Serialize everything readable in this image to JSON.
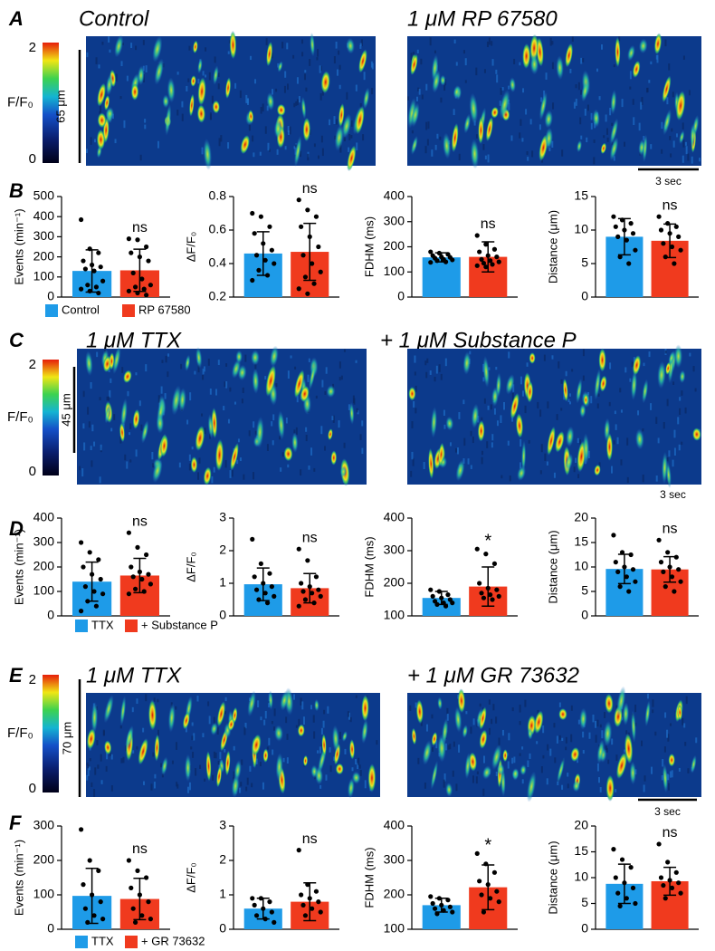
{
  "figure": {
    "panel_labels": [
      "A",
      "B",
      "C",
      "D",
      "E",
      "F"
    ],
    "kymographs": [
      {
        "titles": [
          "Control",
          "1 μM RP 67580"
        ],
        "colorbar_label": "F/F₀",
        "colorbar_lim": [
          0,
          2
        ],
        "colorbar_ticks": [
          0,
          2
        ],
        "space_scale": "65 μm",
        "time_scale": "3 sec"
      },
      {
        "titles": [
          "1 μM TTX",
          "+ 1 μM Substance P"
        ],
        "colorbar_label": "F/F₀",
        "colorbar_lim": [
          0,
          2
        ],
        "colorbar_ticks": [
          0,
          2
        ],
        "space_scale": "45 μm",
        "time_scale": "3 sec"
      },
      {
        "titles": [
          "1 μM TTX",
          "+ 1 μM GR 73632"
        ],
        "colorbar_label": "F/F₀",
        "colorbar_lim": [
          0,
          2
        ],
        "colorbar_ticks": [
          0,
          2
        ],
        "space_scale": "70 μm",
        "time_scale": "3 sec"
      }
    ],
    "legends": [
      [
        {
          "name": "Control",
          "color": "#1e9be8"
        },
        {
          "name": "RP 67580",
          "color": "#f03a1e"
        }
      ],
      [
        {
          "name": "TTX",
          "color": "#1e9be8"
        },
        {
          "name": "+ Substance P",
          "color": "#f03a1e"
        }
      ],
      [
        {
          "name": "TTX",
          "color": "#1e9be8"
        },
        {
          "name": "+ GR 73632",
          "color": "#f03a1e"
        }
      ]
    ]
  },
  "chart_data": [
    {
      "type": "bar",
      "ylabel": "Events (min⁻¹)",
      "ylim": [
        0,
        500
      ],
      "yticks": [
        0,
        100,
        200,
        300,
        400,
        500
      ],
      "series": [
        {
          "color": "#1e9be8",
          "values": [
            130
          ],
          "errors": [
            105
          ],
          "points": [
            385,
            240,
            220,
            180,
            160,
            150,
            140,
            130,
            80,
            60,
            50,
            40,
            30,
            20
          ]
        },
        {
          "color": "#f03a1e",
          "values": [
            133
          ],
          "errors": [
            105
          ],
          "points": [
            290,
            285,
            250,
            220,
            200,
            180,
            120,
            90,
            60,
            50,
            40,
            30,
            20,
            10
          ],
          "annotation": "ns"
        }
      ]
    },
    {
      "type": "bar",
      "ylabel": "ΔF/F₀",
      "ylim": [
        0.2,
        0.8
      ],
      "yticks": [
        0.2,
        0.4,
        0.6,
        0.8
      ],
      "series": [
        {
          "color": "#1e9be8",
          "values": [
            0.46
          ],
          "errors": [
            0.13
          ],
          "points": [
            0.7,
            0.68,
            0.62,
            0.58,
            0.52,
            0.48,
            0.45,
            0.42,
            0.4,
            0.36,
            0.33,
            0.3
          ]
        },
        {
          "color": "#f03a1e",
          "values": [
            0.47
          ],
          "errors": [
            0.17
          ],
          "points": [
            0.78,
            0.72,
            0.68,
            0.62,
            0.56,
            0.5,
            0.45,
            0.4,
            0.35,
            0.32,
            0.28,
            0.25,
            0.22
          ],
          "annotation": "ns"
        }
      ]
    },
    {
      "type": "bar",
      "ylabel": "FDHM (ms)",
      "ylim": [
        0,
        400
      ],
      "yticks": [
        0,
        100,
        200,
        300,
        400
      ],
      "series": [
        {
          "color": "#1e9be8",
          "values": [
            158
          ],
          "errors": [
            18
          ],
          "points": [
            180,
            175,
            170,
            165,
            160,
            158,
            155,
            150,
            148,
            145,
            140,
            138
          ]
        },
        {
          "color": "#f03a1e",
          "values": [
            160
          ],
          "errors": [
            60
          ],
          "points": [
            245,
            210,
            190,
            180,
            165,
            160,
            150,
            145,
            140,
            135,
            130,
            125,
            120
          ],
          "annotation": "ns"
        }
      ]
    },
    {
      "type": "bar",
      "ylabel": "Distance (μm)",
      "ylim": [
        0,
        15
      ],
      "yticks": [
        0,
        5,
        10,
        15
      ],
      "series": [
        {
          "color": "#1e9be8",
          "values": [
            9
          ],
          "errors": [
            2.7
          ],
          "points": [
            12,
            11.5,
            11,
            10.5,
            10,
            9.5,
            9,
            8.5,
            7,
            6,
            5
          ]
        },
        {
          "color": "#f03a1e",
          "values": [
            8.4
          ],
          "errors": [
            2.5
          ],
          "points": [
            12,
            11,
            10.5,
            10,
            9.5,
            9,
            8,
            7.5,
            7,
            6,
            5
          ],
          "annotation": "ns"
        }
      ]
    },
    {
      "type": "bar",
      "ylabel": "Events (min⁻¹)",
      "ylim": [
        0,
        400
      ],
      "yticks": [
        0,
        100,
        200,
        300,
        400
      ],
      "series": [
        {
          "color": "#1e9be8",
          "values": [
            140
          ],
          "errors": [
            80
          ],
          "points": [
            300,
            260,
            230,
            200,
            170,
            150,
            120,
            100,
            90,
            60,
            40,
            20
          ]
        },
        {
          "color": "#f03a1e",
          "values": [
            165
          ],
          "errors": [
            70
          ],
          "points": [
            340,
            280,
            250,
            200,
            180,
            170,
            160,
            150,
            130,
            110,
            100,
            90
          ],
          "annotation": "ns"
        }
      ]
    },
    {
      "type": "bar",
      "ylabel": "ΔF/F₀",
      "ylim": [
        0,
        3
      ],
      "yticks": [
        0,
        1,
        2,
        3
      ],
      "series": [
        {
          "color": "#1e9be8",
          "values": [
            0.97
          ],
          "errors": [
            0.5
          ],
          "points": [
            2.35,
            1.6,
            1.3,
            1.2,
            1,
            0.9,
            0.8,
            0.7,
            0.6,
            0.5,
            0.4
          ]
        },
        {
          "color": "#f03a1e",
          "values": [
            0.85
          ],
          "errors": [
            0.45
          ],
          "points": [
            2.05,
            1.7,
            1.2,
            1,
            0.9,
            0.8,
            0.75,
            0.7,
            0.6,
            0.5,
            0.4,
            0.3
          ],
          "annotation": "ns"
        }
      ]
    },
    {
      "type": "bar",
      "ylabel": "FDHM (ms)",
      "ylim": [
        100,
        400
      ],
      "yticks": [
        100,
        200,
        300,
        400
      ],
      "series": [
        {
          "color": "#1e9be8",
          "values": [
            155
          ],
          "errors": [
            20
          ],
          "points": [
            180,
            175,
            165,
            160,
            155,
            150,
            145,
            140,
            140,
            135,
            130
          ]
        },
        {
          "color": "#f03a1e",
          "values": [
            190
          ],
          "errors": [
            60
          ],
          "points": [
            305,
            290,
            260,
            200,
            185,
            180,
            170,
            165,
            160,
            155,
            150
          ],
          "annotation": "*"
        }
      ]
    },
    {
      "type": "bar",
      "ylabel": "Distance (μm)",
      "ylim": [
        0,
        20
      ],
      "yticks": [
        0,
        5,
        10,
        15,
        20
      ],
      "series": [
        {
          "color": "#1e9be8",
          "values": [
            9.6
          ],
          "errors": [
            3
          ],
          "points": [
            16.5,
            13,
            12.5,
            11,
            10,
            9.5,
            9,
            8,
            7,
            6,
            5
          ]
        },
        {
          "color": "#f03a1e",
          "values": [
            9.5
          ],
          "errors": [
            2.6
          ],
          "points": [
            15.5,
            13,
            12,
            11,
            10,
            9.5,
            9,
            8,
            7,
            6,
            5
          ],
          "annotation": "ns"
        }
      ]
    },
    {
      "type": "bar",
      "ylabel": "Events (min⁻¹)",
      "ylim": [
        0,
        300
      ],
      "yticks": [
        0,
        100,
        200,
        300
      ],
      "series": [
        {
          "color": "#1e9be8",
          "values": [
            97
          ],
          "errors": [
            80
          ],
          "points": [
            290,
            200,
            170,
            130,
            100,
            80,
            60,
            40,
            30,
            20
          ]
        },
        {
          "color": "#f03a1e",
          "values": [
            88
          ],
          "errors": [
            60
          ],
          "points": [
            200,
            170,
            150,
            120,
            100,
            80,
            60,
            40,
            30,
            20
          ],
          "annotation": "ns"
        }
      ]
    },
    {
      "type": "bar",
      "ylabel": "ΔF/F₀",
      "ylim": [
        0,
        3
      ],
      "yticks": [
        0,
        1,
        2,
        3
      ],
      "series": [
        {
          "color": "#1e9be8",
          "values": [
            0.6
          ],
          "errors": [
            0.3
          ],
          "points": [
            0.9,
            0.9,
            0.8,
            0.7,
            0.6,
            0.5,
            0.4,
            0.3,
            0.2
          ]
        },
        {
          "color": "#f03a1e",
          "values": [
            0.8
          ],
          "errors": [
            0.55
          ],
          "points": [
            2.3,
            1.3,
            1.1,
            1,
            0.9,
            0.8,
            0.7,
            0.6,
            0.5,
            0.4
          ],
          "annotation": "ns"
        }
      ]
    },
    {
      "type": "bar",
      "ylabel": "FDHM (ms)",
      "ylim": [
        100,
        400
      ],
      "yticks": [
        100,
        200,
        300,
        400
      ],
      "series": [
        {
          "color": "#1e9be8",
          "values": [
            170
          ],
          "errors": [
            20
          ],
          "points": [
            195,
            190,
            185,
            175,
            170,
            165,
            160,
            155,
            150,
            145
          ]
        },
        {
          "color": "#f03a1e",
          "values": [
            222
          ],
          "errors": [
            65
          ],
          "points": [
            320,
            290,
            265,
            240,
            230,
            210,
            200,
            190,
            180,
            150
          ],
          "annotation": "*"
        }
      ]
    },
    {
      "type": "bar",
      "ylabel": "Distance (μm)",
      "ylim": [
        0,
        20
      ],
      "yticks": [
        0,
        5,
        10,
        15,
        20
      ],
      "series": [
        {
          "color": "#1e9be8",
          "values": [
            8.8
          ],
          "errors": [
            3.8
          ],
          "points": [
            15.5,
            13.5,
            12,
            10,
            9,
            8,
            7,
            6,
            5,
            4.5
          ]
        },
        {
          "color": "#f03a1e",
          "values": [
            9.3
          ],
          "errors": [
            2.7
          ],
          "points": [
            16.5,
            13,
            11,
            10,
            9.5,
            9,
            8.5,
            8,
            7,
            6
          ],
          "annotation": "ns"
        }
      ]
    }
  ]
}
